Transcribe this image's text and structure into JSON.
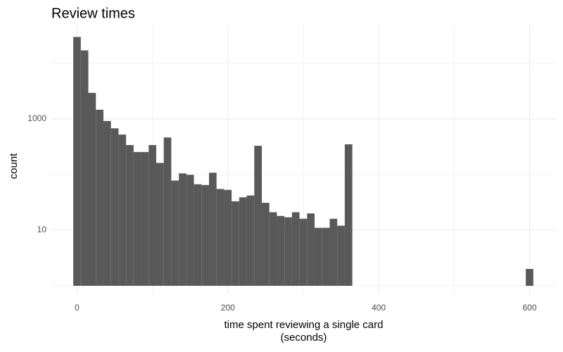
{
  "chart_data": {
    "type": "histogram",
    "title": "Review times",
    "x_label": "time spent reviewing a single card\n(seconds)",
    "y_label": "count",
    "bins": [
      -5,
      5,
      15,
      25,
      35,
      45,
      55,
      65,
      75,
      85,
      95,
      105,
      115,
      125,
      135,
      145,
      155,
      165,
      175,
      185,
      195,
      205,
      215,
      225,
      235,
      245,
      255,
      265,
      275,
      285,
      295,
      305,
      315,
      325,
      335,
      345,
      355,
      365,
      375,
      385,
      395,
      405,
      415,
      425,
      435,
      445,
      455,
      465,
      475,
      485,
      495,
      505,
      515,
      525,
      535,
      545,
      555,
      565,
      575,
      585,
      595,
      605
    ],
    "counts": [
      30000,
      17200,
      2960,
      1470,
      920,
      680,
      525,
      340,
      255,
      255,
      340,
      162,
      465,
      78,
      105,
      99,
      67,
      65,
      108,
      55,
      53,
      33,
      39,
      42,
      330,
      31,
      21,
      18,
      17,
      21,
      16,
      20,
      11,
      11,
      16,
      12,
      350,
      0,
      0,
      0,
      0,
      0,
      0,
      0,
      0,
      0,
      0,
      0,
      0,
      0,
      0,
      0,
      0,
      0,
      0,
      0,
      0,
      0,
      0,
      0,
      2
    ],
    "color": "#595959",
    "xlim": [
      -34,
      635
    ],
    "xticks": [
      0,
      200,
      400,
      600
    ],
    "x_minor_grid": [
      100,
      300,
      500
    ],
    "ylim": [
      0.7,
      50000
    ],
    "yticks": [
      10,
      1000
    ],
    "y_minor_grid": [
      1,
      100,
      10000
    ],
    "y_log": true,
    "grid": true
  }
}
